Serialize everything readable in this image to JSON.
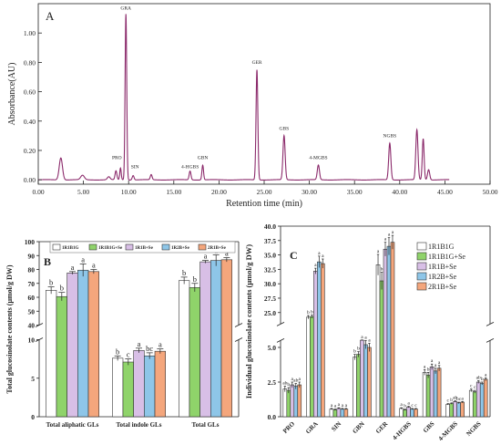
{
  "chart_data": [
    {
      "type": "line",
      "panel_label": "A",
      "xlabel": "Retention time (min)",
      "ylabel": "Absorbance(AU)",
      "xlim": [
        0,
        50
      ],
      "ylim": [
        -0.03,
        1.2
      ],
      "xticks": [
        "0.00",
        "5.00",
        "10.00",
        "15.00",
        "20.00",
        "25.00",
        "30.00",
        "35.00",
        "40.00",
        "45.00",
        "50.00"
      ],
      "yticks": [
        "0.00",
        "0.20",
        "0.40",
        "0.60",
        "0.80",
        "1.00"
      ],
      "line_color": "#8b2a6b",
      "peaks": [
        {
          "x": 2.5,
          "h": 0.15,
          "w": 0.18
        },
        {
          "x": 4.9,
          "h": 0.03,
          "w": 0.2
        },
        {
          "x": 7.8,
          "h": 0.02,
          "w": 0.15
        },
        {
          "x": 8.6,
          "h": 0.06,
          "w": 0.1
        },
        {
          "x": 9.1,
          "h": 0.08,
          "w": 0.08
        },
        {
          "x": 9.7,
          "h": 1.13,
          "w": 0.09
        },
        {
          "x": 10.5,
          "h": 0.03,
          "w": 0.1
        },
        {
          "x": 12.5,
          "h": 0.035,
          "w": 0.1
        },
        {
          "x": 16.8,
          "h": 0.06,
          "w": 0.1
        },
        {
          "x": 18.2,
          "h": 0.1,
          "w": 0.09
        },
        {
          "x": 24.2,
          "h": 0.75,
          "w": 0.1
        },
        {
          "x": 27.2,
          "h": 0.3,
          "w": 0.12
        },
        {
          "x": 31.0,
          "h": 0.1,
          "w": 0.12
        },
        {
          "x": 38.9,
          "h": 0.25,
          "w": 0.12
        },
        {
          "x": 41.9,
          "h": 0.34,
          "w": 0.12
        },
        {
          "x": 42.6,
          "h": 0.28,
          "w": 0.1
        },
        {
          "x": 43.2,
          "h": 0.07,
          "w": 0.12
        }
      ],
      "annotations": [
        {
          "label": "GRA",
          "x": 9.7,
          "y": 1.16
        },
        {
          "label": "PRO",
          "x": 8.7,
          "y": 0.14
        },
        {
          "label": "SIN",
          "x": 10.7,
          "y": 0.08
        },
        {
          "label": "4-HGBS",
          "x": 16.8,
          "y": 0.08
        },
        {
          "label": "GBN",
          "x": 18.2,
          "y": 0.14
        },
        {
          "label": "GER",
          "x": 24.2,
          "y": 0.79
        },
        {
          "label": "GBS",
          "x": 27.2,
          "y": 0.34
        },
        {
          "label": "4-MGBS",
          "x": 31.0,
          "y": 0.14
        },
        {
          "label": "NGBS",
          "x": 38.9,
          "y": 0.29
        }
      ]
    },
    {
      "type": "bar",
      "panel_label": "B",
      "ylabel": "Total glucosinolate contents (μmol/g DW)",
      "categories": [
        "Total aliphatic GLs",
        "Total indole GLs",
        "Total GLs"
      ],
      "broken_axis": {
        "lower": [
          0,
          10
        ],
        "upper": [
          40,
          100
        ]
      },
      "lower_yticks": [
        "0",
        "5",
        "10"
      ],
      "upper_yticks": [
        "40",
        "50",
        "60",
        "70",
        "80",
        "90",
        "100"
      ],
      "series": [
        {
          "name": "1R1B1G",
          "color": "#ffffff",
          "values": [
            65,
            7.6,
            72
          ],
          "errors": [
            2.5,
            0.3,
            2.5
          ],
          "letters": [
            "b",
            "b",
            "b"
          ]
        },
        {
          "name": "1R1B1G+Se",
          "color": "#8fd36a",
          "values": [
            60.5,
            7.1,
            67
          ],
          "errors": [
            3,
            0.4,
            3
          ],
          "letters": [
            "b",
            "c",
            "b"
          ]
        },
        {
          "name": "1R1B+Se",
          "color": "#d8bfe6",
          "values": [
            77.5,
            8.6,
            85.5
          ],
          "errors": [
            1,
            0.3,
            1
          ],
          "letters": [
            "a",
            "a",
            "a"
          ]
        },
        {
          "name": "1R2B+Se",
          "color": "#8ec6e8",
          "values": [
            79.5,
            7.9,
            86.5
          ],
          "errors": [
            4.5,
            0.4,
            4
          ],
          "letters": [
            "a",
            "bc",
            "a"
          ]
        },
        {
          "name": "2R1B+Se",
          "color": "#f4a67c",
          "values": [
            78.5,
            8.5,
            87
          ],
          "errors": [
            1.5,
            0.3,
            1.5
          ],
          "letters": [
            "a",
            "a",
            "a"
          ]
        }
      ]
    },
    {
      "type": "bar",
      "panel_label": "C",
      "ylabel": "Individual glucosinolate contents (μmol/g DW)",
      "categories": [
        "PRO",
        "GRA",
        "SIN",
        "GBN",
        "GER",
        "4-HGBS",
        "GBS",
        "4-MGBS",
        "NGBS"
      ],
      "broken_axis": {
        "lower": [
          0,
          5.5
        ],
        "upper": [
          23,
          40
        ]
      },
      "lower_yticks": [
        "0.0",
        "2.5",
        "5.0"
      ],
      "upper_yticks": [
        "25.0",
        "27.5",
        "30.0",
        "32.5",
        "35.0",
        "37.5",
        "40.0"
      ],
      "series": [
        {
          "name": "1R1B1G",
          "color": "#ffffff",
          "values": [
            2.0,
            24.2,
            0.55,
            4.3,
            33.3,
            0.6,
            3.2,
            0.9,
            1.9
          ],
          "errors": [
            0.2,
            0.3,
            0.05,
            0.2,
            1.8,
            0.05,
            0.2,
            0.05,
            0.1
          ],
          "letters": [
            "ab",
            "b",
            "a",
            "b",
            "a",
            "a",
            "a",
            "c",
            "c"
          ]
        },
        {
          "name": "1R1B1G+Se",
          "color": "#8fd36a",
          "values": [
            1.9,
            24.3,
            0.5,
            4.5,
            30.5,
            0.5,
            3.0,
            0.95,
            1.8
          ],
          "errors": [
            0.2,
            0.3,
            0.05,
            0.2,
            1.5,
            0.05,
            0.2,
            0.05,
            0.1
          ],
          "letters": [
            "b",
            "b",
            "a",
            "b",
            "b",
            "b",
            "b",
            "b",
            "c"
          ]
        },
        {
          "name": "1R1B+Se",
          "color": "#d8bfe6",
          "values": [
            2.3,
            32.2,
            0.6,
            5.8,
            36.0,
            0.7,
            3.6,
            1.1,
            2.5
          ],
          "errors": [
            0.2,
            0.5,
            0.05,
            0.3,
            1.2,
            0.05,
            0.2,
            0.05,
            0.1
          ],
          "letters": [
            "a",
            "a",
            "a",
            "a",
            "a",
            "a",
            "a",
            "ab",
            "ab"
          ]
        },
        {
          "name": "1R2B+Se",
          "color": "#8ec6e8",
          "values": [
            2.2,
            33.8,
            0.55,
            5.2,
            36.5,
            0.55,
            3.3,
            1.0,
            2.4
          ],
          "errors": [
            0.2,
            1.0,
            0.05,
            0.3,
            1.5,
            0.05,
            0.2,
            0.05,
            0.1
          ],
          "letters": [
            "ab",
            "a",
            "a",
            "a",
            "a",
            "c",
            "a",
            "bc",
            "b"
          ]
        },
        {
          "name": "2R1B+Se",
          "color": "#f4a67c",
          "values": [
            2.3,
            33.5,
            0.55,
            5.0,
            37.2,
            0.55,
            3.5,
            1.05,
            2.7
          ],
          "errors": [
            0.2,
            0.8,
            0.05,
            0.3,
            1.2,
            0.05,
            0.2,
            0.05,
            0.1
          ],
          "letters": [
            "a",
            "a",
            "a",
            "a",
            "a",
            "c",
            "a",
            "a",
            "a"
          ]
        }
      ]
    }
  ]
}
